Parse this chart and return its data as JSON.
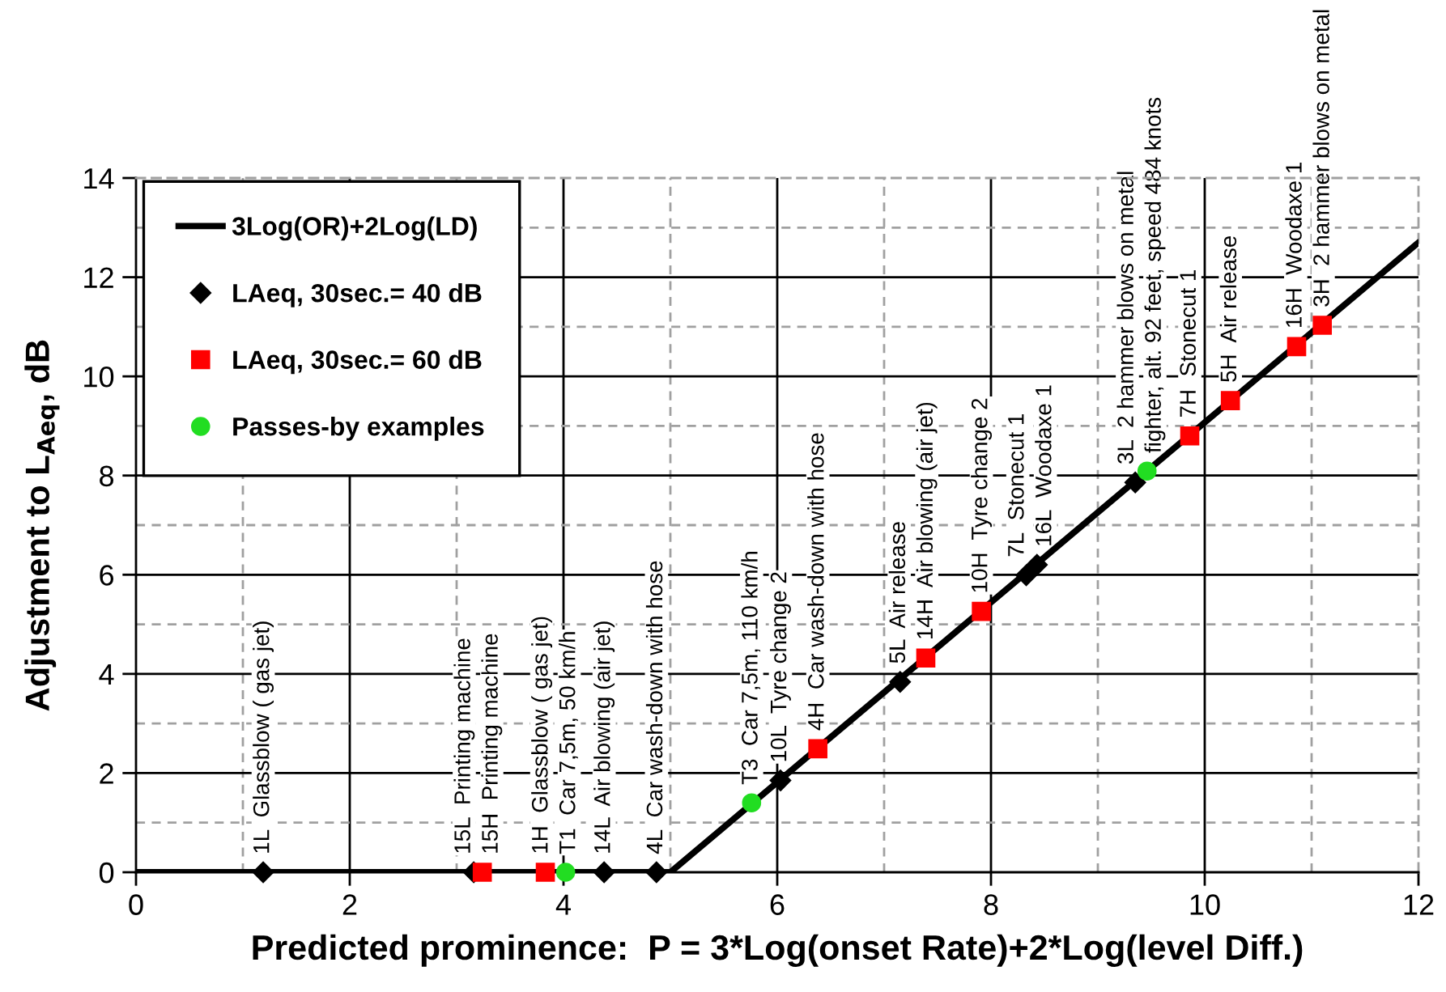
{
  "chart_data": {
    "type": "scatter",
    "xlabel": "Predicted prominence:  P = 3*Log(onset Rate)+2*Log(level Diff.)",
    "ylabel": "Adjustment to L$_{Aeq}$, dB",
    "xlim": [
      0,
      12
    ],
    "ylim": [
      0,
      14
    ],
    "xticks": [
      0,
      {
        "value": 1,
        "label": null
      },
      2,
      {
        "value": 3,
        "label": null
      },
      4,
      {
        "value": 5,
        "label": null
      },
      6,
      {
        "value": 7,
        "label": null
      },
      8,
      {
        "value": 9,
        "label": null
      },
      10,
      {
        "value": 11,
        "label": null
      },
      12
    ],
    "yticks": [
      0,
      {
        "value": 1,
        "label": null
      },
      2,
      {
        "value": 3,
        "label": null
      },
      4,
      {
        "value": 5,
        "label": null
      },
      6,
      {
        "value": 7,
        "label": null
      },
      8,
      {
        "value": 9,
        "label": null
      },
      10,
      {
        "value": 11,
        "label": null
      },
      12,
      {
        "value": 13,
        "label": null
      },
      14
    ],
    "grid": true,
    "legend": "top left",
    "series": [
      {
        "name": "3Log(OR)+2Log(LD)",
        "type": "line",
        "color": "#000000",
        "marker": "none",
        "line_style": "solid",
        "x": [
          0,
          5,
          12
        ],
        "values": [
          0,
          0,
          12.7
        ]
      },
      {
        "name": "LAeq, 30sec.= 40 dB",
        "color": "#000000",
        "marker": "diamond",
        "x": [
          1.19,
          3.16,
          4.38,
          4.87,
          6.03,
          7.15,
          8.33,
          8.43,
          9.35
        ],
        "values": [
          0,
          0,
          0,
          0,
          1.85,
          3.84,
          5.99,
          6.2,
          7.86
        ]
      },
      {
        "name": "LAeq, 30sec.= 60 dB",
        "color": "#ff0000",
        "marker": "square",
        "x": [
          3.24,
          3.83,
          6.38,
          7.39,
          7.91,
          9.86,
          10.24,
          10.86,
          11.1
        ],
        "values": [
          0,
          0,
          2.49,
          4.32,
          5.26,
          8.8,
          9.51,
          10.6,
          11.03
        ]
      },
      {
        "name": "Passes-by examples",
        "color": "#22dd22",
        "marker": "circle",
        "x": [
          4.02,
          5.76,
          9.46
        ],
        "values": [
          0,
          1.4,
          8.09
        ]
      }
    ],
    "annotations": [
      {
        "text": "1L  Glassblow ( gas jet)",
        "x": 1.19,
        "y": 0
      },
      {
        "text": "15L  Printing machine",
        "x": 3.16,
        "y": 0
      },
      {
        "text": "14L  Air blowing (air jet)",
        "x": 4.38,
        "y": 0
      },
      {
        "text": "4L  Car wash-down with hose",
        "x": 4.87,
        "y": 0
      },
      {
        "text": "10L  Tyre change 2",
        "x": 6.03,
        "y": 1.85
      },
      {
        "text": "5L  Air release",
        "x": 7.15,
        "y": 3.84
      },
      {
        "text": "7L  Stonecut 1",
        "x": 8.33,
        "y": 5.99
      },
      {
        "text": "16L  Woodaxe 1",
        "x": 8.43,
        "y": 6.2
      },
      {
        "text": "3L  2 hammer blows on metal",
        "x": 9.35,
        "y": 7.86
      },
      {
        "text": "15H  Printing machine",
        "x": 3.24,
        "y": 0
      },
      {
        "text": "1H  Glassblow ( gas jet)",
        "x": 3.83,
        "y": 0
      },
      {
        "text": "4H  Car wash-down with hose",
        "x": 6.38,
        "y": 2.49
      },
      {
        "text": "14H  Air blowing (air jet)",
        "x": 7.39,
        "y": 4.32
      },
      {
        "text": "10H  Tyre change 2",
        "x": 7.91,
        "y": 5.26
      },
      {
        "text": "7H  Stonecut 1",
        "x": 9.86,
        "y": 8.8
      },
      {
        "text": "5H  Air release",
        "x": 10.24,
        "y": 9.51
      },
      {
        "text": "16H  Woodaxe 1",
        "x": 10.86,
        "y": 10.6
      },
      {
        "text": "3H  2 hammer blows on metal",
        "x": 11.1,
        "y": 11.03
      },
      {
        "text": "T1  Car 7,5m, 50 km/h",
        "x": 4.02,
        "y": 0
      },
      {
        "text": "T3  Car 7,5m, 110 km/h",
        "x": 5.76,
        "y": 1.4
      },
      {
        "text": "fighter, alt. 92 feet, speed 484 knots",
        "x": 9.46,
        "y": 8.09
      }
    ]
  }
}
